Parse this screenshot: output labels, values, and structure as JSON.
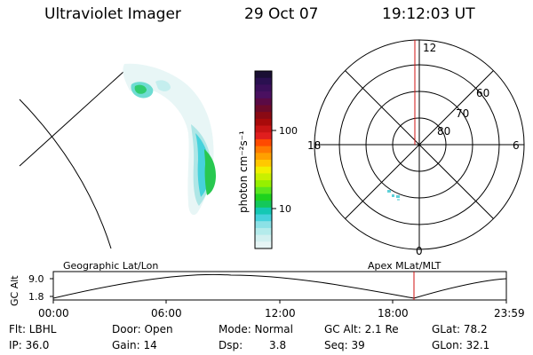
{
  "header": {
    "instrument": "Ultraviolet Imager",
    "date": "29 Oct 07",
    "time": "19:12:03 UT"
  },
  "colorbar": {
    "label": "photon cm⁻²s⁻¹",
    "ticks": [
      "100",
      "10"
    ],
    "colors": [
      "#1a0f33",
      "#2a1050",
      "#3b0f5a",
      "#4a1060",
      "#5a0a45",
      "#6d0a2a",
      "#8a0a14",
      "#a80a0a",
      "#c81414",
      "#e01e1e",
      "#ff4a00",
      "#ff7a00",
      "#ffa000",
      "#ffc800",
      "#f0f000",
      "#c8f000",
      "#96f000",
      "#5ae61e",
      "#1ed21e",
      "#14c85a",
      "#14c8b4",
      "#46d2dc",
      "#8ce1e6",
      "#b4ebeb",
      "#d2f0f0",
      "#e6f5f5"
    ]
  },
  "polar": {
    "mlt_labels": {
      "top": "12",
      "left": "18",
      "right": "6",
      "bottom": "0"
    },
    "lat_labels": [
      "60",
      "70",
      "80"
    ]
  },
  "ephemeris": {
    "ylabel": "GC Alt",
    "ymax": "9.0",
    "ymin": "1.8",
    "left_title": "Geographic Lat/Lon",
    "right_title": "Apex  MLat/MLT",
    "xticks": [
      "00:00",
      "06:00",
      "12:00",
      "18:00",
      "23:59"
    ],
    "marker_color": "#d01010"
  },
  "info": {
    "row1": {
      "flt": "Flt: LBHL",
      "door": "Door: Open",
      "mode": "Mode: Normal",
      "gcalt": "GC Alt: 2.1 Re",
      "glat": "GLat: 78.2"
    },
    "row2": {
      "ip": "IP: 36.0",
      "gain": "Gain: 14",
      "dsp_label": "Dsp:",
      "dsp_value": "3.8",
      "seq": "Seq: 39",
      "glon": "GLon: 32.1"
    }
  }
}
